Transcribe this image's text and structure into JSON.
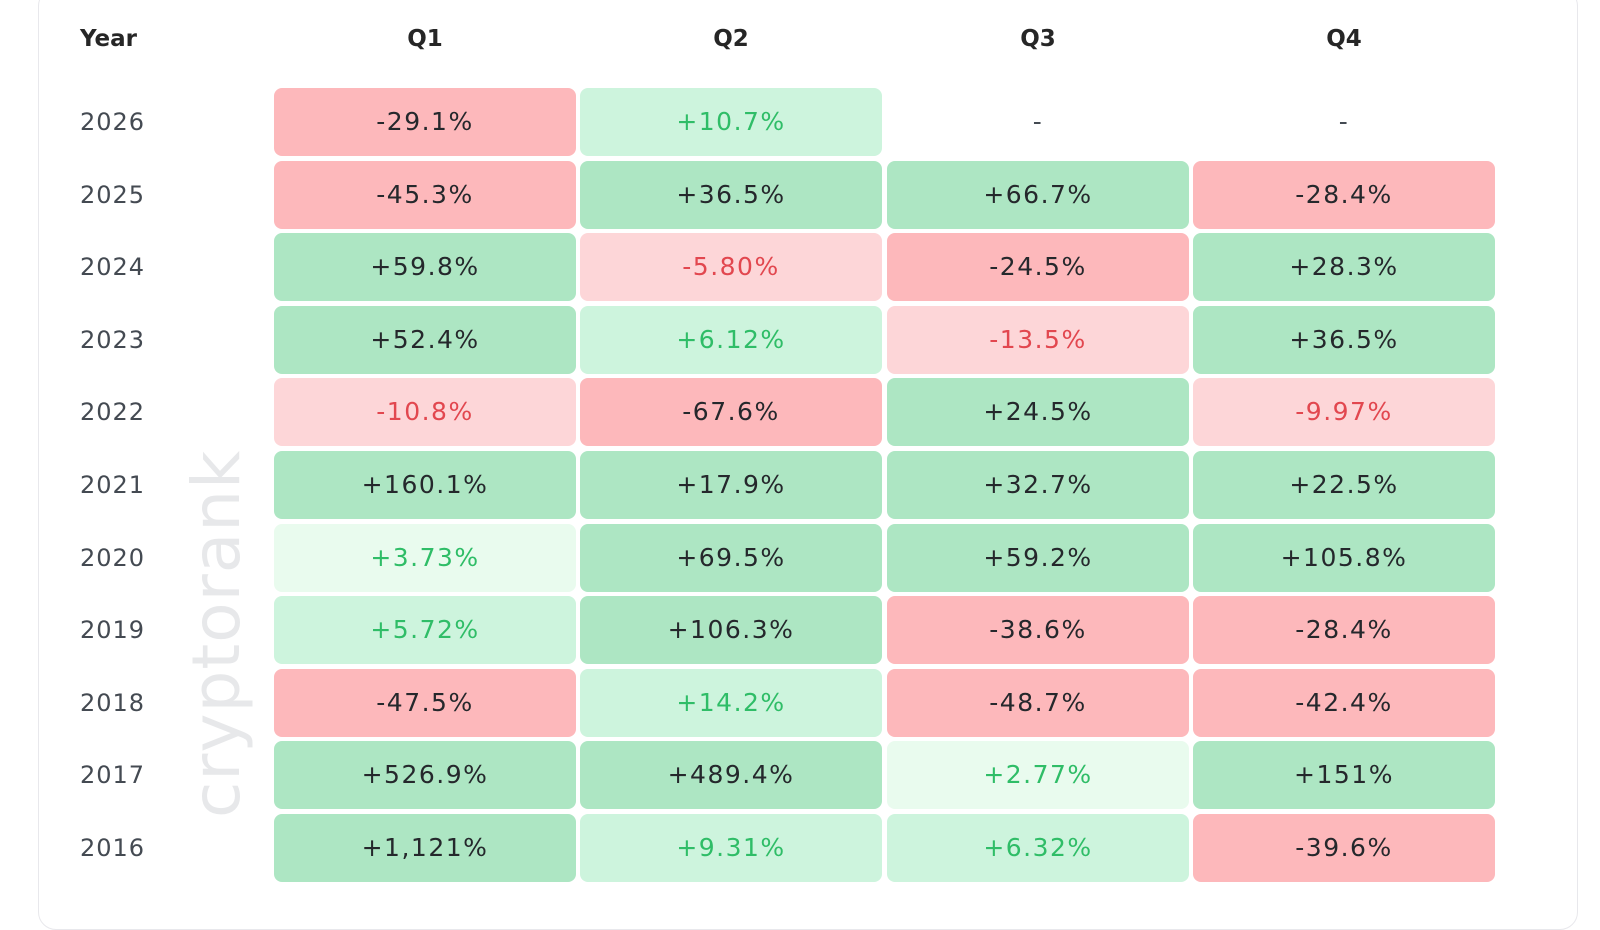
{
  "watermark": "cryptorank",
  "chart_data": {
    "type": "heatmap",
    "header_label": "Year",
    "columns": [
      "Q1",
      "Q2",
      "Q3",
      "Q4"
    ],
    "colors": {
      "positive_strong_bg": "#ade6c3",
      "positive_light_bg": "#cdf4dd",
      "negative_strong_bg": "#fdb8bb",
      "negative_light_bg": "#fdd6d8",
      "positive_text": "#2fbd67",
      "negative_text": "#e2474f"
    },
    "rows": [
      {
        "year": "2026",
        "cells": [
          "-29.1%",
          "+10.7%",
          "-",
          "-"
        ],
        "values": [
          -29.1,
          10.7,
          null,
          null
        ]
      },
      {
        "year": "2025",
        "cells": [
          "-45.3%",
          "+36.5%",
          "+66.7%",
          "-28.4%"
        ],
        "values": [
          -45.3,
          36.5,
          66.7,
          -28.4
        ]
      },
      {
        "year": "2024",
        "cells": [
          "+59.8%",
          "-5.80%",
          "-24.5%",
          "+28.3%"
        ],
        "values": [
          59.8,
          -5.8,
          -24.5,
          28.3
        ]
      },
      {
        "year": "2023",
        "cells": [
          "+52.4%",
          "+6.12%",
          "-13.5%",
          "+36.5%"
        ],
        "values": [
          52.4,
          6.12,
          -13.5,
          36.5
        ]
      },
      {
        "year": "2022",
        "cells": [
          "-10.8%",
          "-67.6%",
          "+24.5%",
          "-9.97%"
        ],
        "values": [
          -10.8,
          -67.6,
          24.5,
          -9.97
        ]
      },
      {
        "year": "2021",
        "cells": [
          "+160.1%",
          "+17.9%",
          "+32.7%",
          "+22.5%"
        ],
        "values": [
          160.1,
          17.9,
          32.7,
          22.5
        ]
      },
      {
        "year": "2020",
        "cells": [
          "+3.73%",
          "+69.5%",
          "+59.2%",
          "+105.8%"
        ],
        "values": [
          3.73,
          69.5,
          59.2,
          105.8
        ]
      },
      {
        "year": "2019",
        "cells": [
          "+5.72%",
          "+106.3%",
          "-38.6%",
          "-28.4%"
        ],
        "values": [
          5.72,
          106.3,
          -38.6,
          -28.4
        ]
      },
      {
        "year": "2018",
        "cells": [
          "-47.5%",
          "+14.2%",
          "-48.7%",
          "-42.4%"
        ],
        "values": [
          -47.5,
          14.2,
          -48.7,
          -42.4
        ]
      },
      {
        "year": "2017",
        "cells": [
          "+526.9%",
          "+489.4%",
          "+2.77%",
          "+151%"
        ],
        "values": [
          526.9,
          489.4,
          2.77,
          151
        ]
      },
      {
        "year": "2016",
        "cells": [
          "+1,121%",
          "+9.31%",
          "+6.32%",
          "-39.6%"
        ],
        "values": [
          1121,
          9.31,
          6.32,
          -39.6
        ]
      }
    ]
  }
}
